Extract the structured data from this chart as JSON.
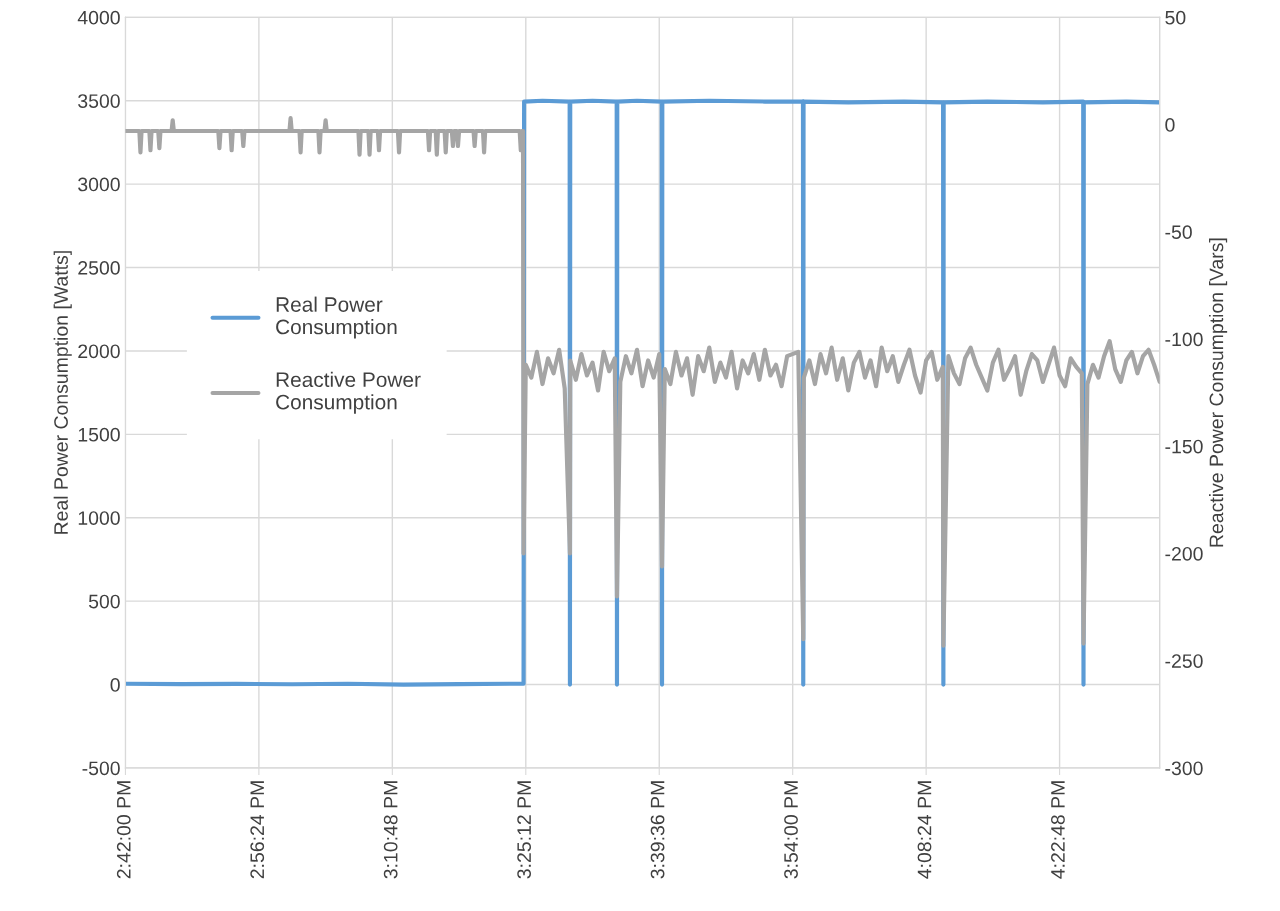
{
  "chart_data": {
    "type": "line",
    "ylabel": "Real Power Consumption [Watts]",
    "y2label": "Reactive Power Consumption [Vars]",
    "xlim": [
      14.7,
      16.56
    ],
    "xticks": [
      {
        "value": 14.7,
        "label": "2:42:00 PM"
      },
      {
        "value": 14.94,
        "label": "2:56:24 PM"
      },
      {
        "value": 15.18,
        "label": "3:10:48 PM"
      },
      {
        "value": 15.42,
        "label": "3:25:12 PM"
      },
      {
        "value": 15.66,
        "label": "3:39:36 PM"
      },
      {
        "value": 15.9,
        "label": "3:54:00 PM"
      },
      {
        "value": 16.14,
        "label": "4:08:24 PM"
      },
      {
        "value": 16.38,
        "label": "4:22:48 PM"
      }
    ],
    "ylim": [
      -500,
      4000
    ],
    "yticks": [
      -500,
      0,
      500,
      1000,
      1500,
      2000,
      2500,
      3000,
      3500,
      4000
    ],
    "y2lim": [
      -300,
      50
    ],
    "y2ticks": [
      -300,
      -250,
      -200,
      -150,
      -100,
      -50,
      0,
      50
    ],
    "grid": true,
    "legend": "left",
    "marker": "none",
    "line_style": "solid",
    "series": [
      {
        "name": "Real Power Consumption",
        "color": "#5b9bd5",
        "x": [
          14.7,
          14.8,
          14.9,
          15.0,
          15.1,
          15.2,
          15.3,
          15.4,
          15.416,
          15.417,
          15.45,
          15.4989,
          15.4994,
          15.4999,
          15.54,
          15.5835,
          15.584,
          15.5845,
          15.62,
          15.6645,
          15.665,
          15.6655,
          15.75,
          15.85,
          15.9185,
          15.919,
          15.9195,
          16.0,
          16.1,
          16.1705,
          16.171,
          16.1715,
          16.25,
          16.35,
          16.4225,
          16.423,
          16.4235,
          16.5,
          16.56
        ],
        "values": [
          5,
          3,
          4,
          2,
          5,
          0,
          3,
          5,
          5,
          3495,
          3500,
          3495,
          0,
          3495,
          3500,
          3495,
          0,
          3495,
          3500,
          3495,
          0,
          3495,
          3500,
          3495,
          3495,
          0,
          3495,
          3490,
          3495,
          3490,
          0,
          3490,
          3495,
          3490,
          3495,
          0,
          3490,
          3495,
          3490
        ]
      },
      {
        "name": "Reactive Power Consumption",
        "color": "#a5a5a5",
        "axis": "y2",
        "x": [
          14.7,
          14.725,
          14.727,
          14.729,
          14.743,
          14.745,
          14.747,
          14.759,
          14.761,
          14.763,
          14.783,
          14.785,
          14.787,
          14.867,
          14.869,
          14.871,
          14.889,
          14.891,
          14.893,
          14.91,
          14.912,
          14.914,
          14.995,
          14.997,
          14.999,
          15.013,
          15.015,
          15.017,
          15.047,
          15.049,
          15.051,
          15.058,
          15.06,
          15.062,
          15.119,
          15.121,
          15.123,
          15.137,
          15.139,
          15.141,
          15.154,
          15.156,
          15.158,
          15.19,
          15.192,
          15.194,
          15.244,
          15.246,
          15.248,
          15.258,
          15.26,
          15.262,
          15.274,
          15.276,
          15.278,
          15.287,
          15.289,
          15.291,
          15.296,
          15.298,
          15.3,
          15.326,
          15.328,
          15.33,
          15.343,
          15.345,
          15.347,
          15.409,
          15.411,
          15.413,
          15.415,
          15.416,
          15.42,
          15.43,
          15.44,
          15.45,
          15.46,
          15.47,
          15.48,
          15.49,
          15.4994,
          15.5,
          15.51,
          15.52,
          15.53,
          15.54,
          15.55,
          15.56,
          15.57,
          15.58,
          15.584,
          15.59,
          15.6,
          15.61,
          15.62,
          15.63,
          15.64,
          15.65,
          15.66,
          15.665,
          15.67,
          15.68,
          15.69,
          15.7,
          15.71,
          15.72,
          15.73,
          15.74,
          15.75,
          15.76,
          15.77,
          15.78,
          15.79,
          15.8,
          15.81,
          15.82,
          15.83,
          15.84,
          15.85,
          15.86,
          15.87,
          15.88,
          15.89,
          15.91,
          15.919,
          15.92,
          15.93,
          15.94,
          15.95,
          15.96,
          15.97,
          15.98,
          15.99,
          16.0,
          16.01,
          16.02,
          16.03,
          16.04,
          16.05,
          16.06,
          16.07,
          16.08,
          16.09,
          16.1,
          16.11,
          16.12,
          16.13,
          16.14,
          16.15,
          16.16,
          16.17,
          16.171,
          16.18,
          16.19,
          16.2,
          16.21,
          16.22,
          16.23,
          16.24,
          16.25,
          16.26,
          16.27,
          16.28,
          16.29,
          16.3,
          16.31,
          16.32,
          16.33,
          16.34,
          16.35,
          16.36,
          16.37,
          16.38,
          16.39,
          16.4,
          16.41,
          16.42,
          16.423,
          16.43,
          16.44,
          16.45,
          16.46,
          16.47,
          16.48,
          16.49,
          16.5,
          16.51,
          16.52,
          16.53,
          16.54,
          16.55,
          16.56
        ],
        "values": [
          -3,
          -3,
          -13,
          -3,
          -3,
          -12,
          -3,
          -3,
          -11,
          -3,
          -3,
          2,
          -3,
          -3,
          -11,
          -3,
          -3,
          -12,
          -3,
          -3,
          -10,
          -3,
          -3,
          3,
          -3,
          -3,
          -13,
          -3,
          -3,
          -13,
          -3,
          -3,
          2,
          -3,
          -3,
          -14,
          -3,
          -3,
          -14,
          -3,
          -3,
          -12,
          -3,
          -3,
          -13,
          -3,
          -3,
          -12,
          -3,
          -3,
          -14,
          -3,
          -3,
          -13,
          -3,
          -3,
          -10,
          -3,
          -3,
          -10,
          -3,
          -3,
          -10,
          -3,
          -3,
          -13,
          -3,
          -3,
          -12,
          -3,
          -3,
          -200,
          -112,
          -118,
          -106,
          -121,
          -109,
          -116,
          -105,
          -123,
          -200,
          -110,
          -119,
          -107,
          -117,
          -111,
          -124,
          -106,
          -115,
          -109,
          -220,
          -120,
          -108,
          -116,
          -105,
          -122,
          -110,
          -118,
          -107,
          -206,
          -114,
          -121,
          -106,
          -117,
          -109,
          -126,
          -108,
          -115,
          -104,
          -120,
          -111,
          -118,
          -106,
          -123,
          -110,
          -116,
          -107,
          -119,
          -105,
          -117,
          -112,
          -122,
          -108,
          -106,
          -240,
          -118,
          -110,
          -121,
          -107,
          -116,
          -104,
          -119,
          -109,
          -124,
          -111,
          -106,
          -118,
          -110,
          -122,
          -104,
          -115,
          -108,
          -120,
          -112,
          -105,
          -117,
          -125,
          -110,
          -106,
          -119,
          -113,
          -243,
          -108,
          -116,
          -121,
          -109,
          -104,
          -112,
          -118,
          -124,
          -111,
          -105,
          -119,
          -114,
          -108,
          -126,
          -115,
          -107,
          -110,
          -120,
          -112,
          -104,
          -117,
          -122,
          -109,
          -113,
          -116,
          -242,
          -121,
          -112,
          -118,
          -108,
          -101,
          -114,
          -120,
          -110,
          -106,
          -116,
          -108,
          -105,
          -112,
          -120
        ]
      }
    ]
  }
}
